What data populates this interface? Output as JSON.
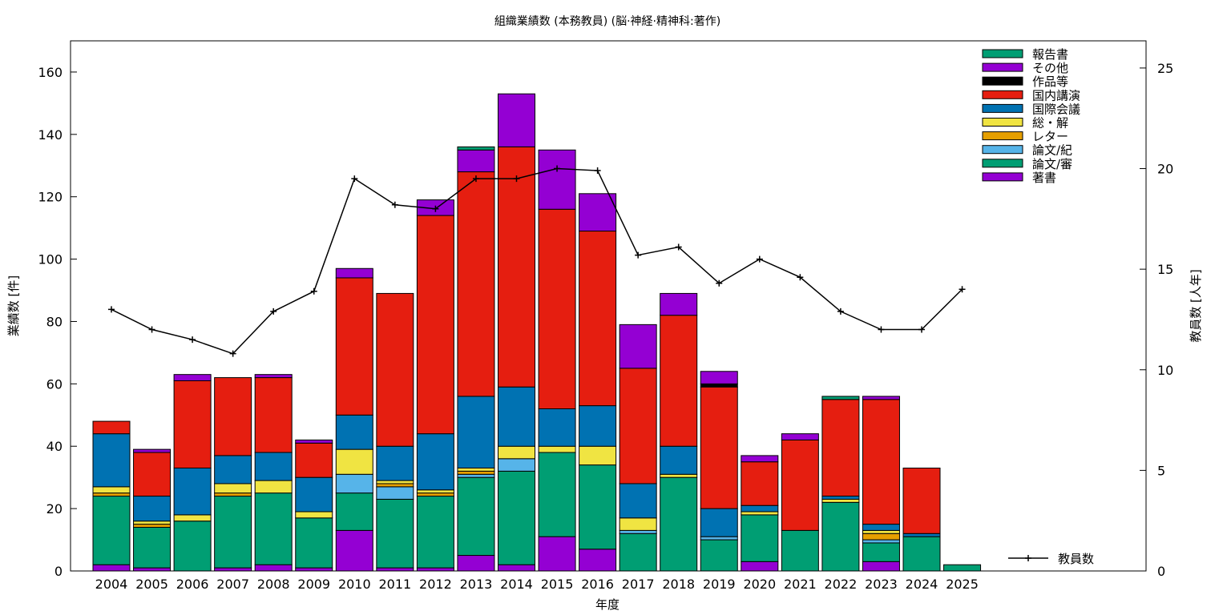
{
  "chart_data": {
    "type": "bar",
    "stacked": true,
    "title": "組織業績数 (本務教員) (脳·神経·精神科:著作)",
    "xlabel": "年度",
    "ylabel": "業績数 [件]",
    "y2label": "教員数 [人年]",
    "ylim": [
      0,
      170
    ],
    "y2lim": [
      0,
      26.35
    ],
    "yticks": [
      0,
      20,
      40,
      60,
      80,
      100,
      120,
      140,
      160
    ],
    "y2ticks": [
      0,
      5,
      10,
      15,
      20,
      25
    ],
    "categories": [
      "2004",
      "2005",
      "2006",
      "2007",
      "2008",
      "2009",
      "2010",
      "2011",
      "2012",
      "2013",
      "2014",
      "2015",
      "2016",
      "2017",
      "2018",
      "2019",
      "2020",
      "2021",
      "2022",
      "2023",
      "2024",
      "2025"
    ],
    "legend_position": "top-right",
    "series": [
      {
        "name": "著書",
        "color": "#9400d3",
        "values": [
          2,
          1,
          0,
          1,
          2,
          1,
          13,
          1,
          1,
          5,
          2,
          11,
          7,
          0,
          0,
          0,
          3,
          0,
          0,
          3,
          0,
          0
        ]
      },
      {
        "name": "論文/審",
        "color": "#009e73",
        "values": [
          22,
          13,
          16,
          23,
          23,
          16,
          12,
          22,
          23,
          25,
          30,
          27,
          27,
          12,
          30,
          10,
          15,
          13,
          22,
          6,
          11,
          2
        ]
      },
      {
        "name": "論文/紀",
        "color": "#56b4e9",
        "values": [
          0,
          0,
          0,
          0,
          0,
          0,
          6,
          4,
          0,
          1,
          4,
          0,
          0,
          1,
          0,
          1,
          0,
          0,
          0,
          1,
          0,
          0
        ]
      },
      {
        "name": "レター",
        "color": "#e69f00",
        "values": [
          1,
          1,
          0,
          1,
          0,
          0,
          0,
          1,
          1,
          1,
          0,
          0,
          0,
          0,
          0,
          0,
          0,
          0,
          0,
          2,
          0,
          0
        ]
      },
      {
        "name": "総・解",
        "color": "#f0e442",
        "values": [
          2,
          1,
          2,
          3,
          4,
          2,
          8,
          1,
          1,
          1,
          4,
          2,
          6,
          4,
          1,
          0,
          1,
          0,
          1,
          1,
          0,
          0
        ]
      },
      {
        "name": "国際会議",
        "color": "#0072b2",
        "values": [
          17,
          8,
          15,
          9,
          9,
          11,
          11,
          11,
          18,
          23,
          19,
          12,
          13,
          11,
          9,
          9,
          2,
          0,
          1,
          2,
          1,
          0
        ]
      },
      {
        "name": "国内講演",
        "color": "#e51e10",
        "values": [
          4,
          14,
          28,
          25,
          24,
          11,
          44,
          49,
          70,
          72,
          77,
          64,
          56,
          37,
          42,
          39,
          14,
          29,
          31,
          40,
          21,
          0
        ]
      },
      {
        "name": "作品等",
        "color": "#000000",
        "values": [
          0,
          0,
          0,
          0,
          0,
          0,
          0,
          0,
          0,
          0,
          0,
          0,
          0,
          0,
          0,
          1,
          0,
          0,
          0,
          0,
          0,
          0
        ]
      },
      {
        "name": "その他",
        "color": "#9400d3",
        "values": [
          0,
          1,
          2,
          0,
          1,
          1,
          3,
          0,
          5,
          7,
          17,
          19,
          12,
          14,
          7,
          4,
          2,
          2,
          0,
          1,
          0,
          0
        ]
      },
      {
        "name": "報告書",
        "color": "#009e73",
        "values": [
          0,
          0,
          0,
          0,
          0,
          0,
          0,
          0,
          0,
          1,
          0,
          0,
          0,
          0,
          0,
          0,
          0,
          0,
          1,
          0,
          0,
          0
        ]
      }
    ],
    "line_series": {
      "name": "教員数",
      "color": "#000000",
      "axis": "y2",
      "values": [
        13.0,
        12.0,
        11.5,
        10.8,
        12.9,
        13.9,
        19.5,
        18.2,
        18.0,
        19.5,
        19.5,
        20.0,
        19.9,
        15.7,
        16.1,
        14.3,
        15.5,
        14.6,
        12.9,
        12.0,
        12.0,
        14.0
      ]
    }
  }
}
